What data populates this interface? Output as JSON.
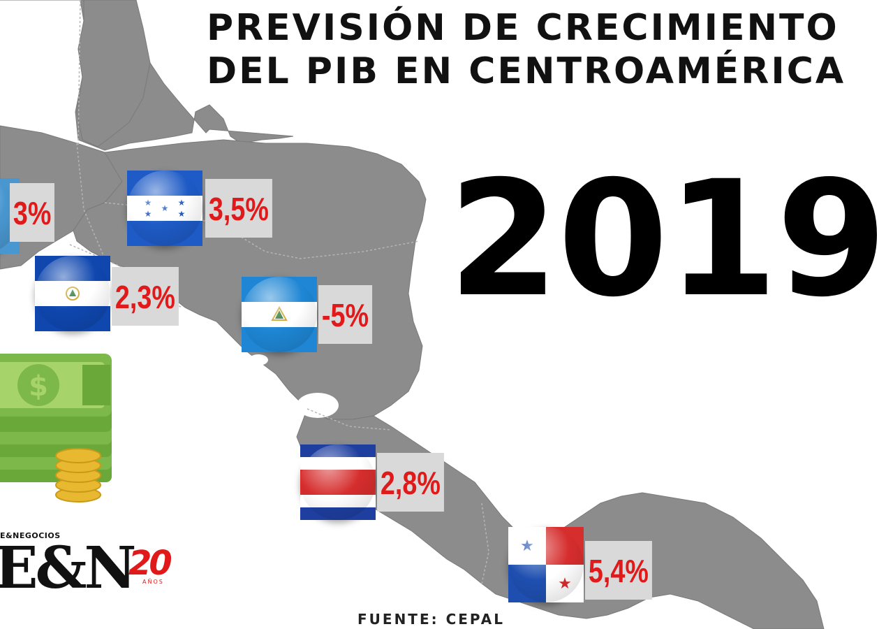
{
  "title": {
    "line1": "PREVISIÓN DE CRECIMIENTO",
    "line2": "DEL PIB EN CENTROAMÉRICA"
  },
  "year": "2019",
  "source": "FUENTE: CEPAL",
  "countries": [
    {
      "flag": "guatemala-flag",
      "value": "3%"
    },
    {
      "flag": "honduras-flag",
      "value": "3,5%"
    },
    {
      "flag": "el-salvador-flag",
      "value": "2,3%"
    },
    {
      "flag": "nicaragua-flag",
      "value": "-5%"
    },
    {
      "flag": "costa-rica-flag",
      "value": "2,8%"
    },
    {
      "flag": "panama-flag",
      "value": "5,4%"
    }
  ],
  "logo": {
    "tagline": "E&NEGOCIOS",
    "brand": "E&N",
    "anniversary": "20",
    "anniversary_sub": "AÑOS"
  },
  "colors": {
    "land": "#8c8c8c",
    "value_text": "#e01a1a",
    "label_box": "#d9d9d9",
    "money": "#7db84a"
  }
}
